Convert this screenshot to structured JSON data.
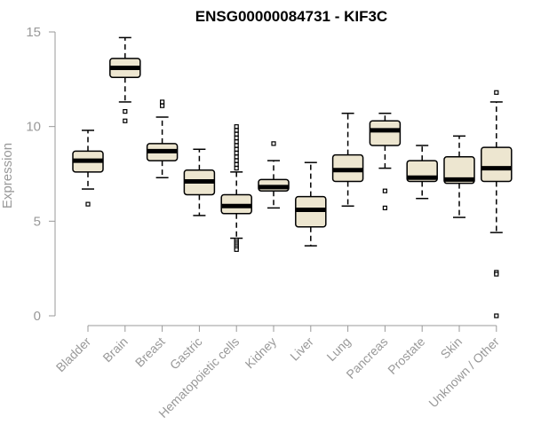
{
  "chart_data": {
    "type": "boxplot",
    "title": "ENSG00000084731 - KIF3C",
    "xlabel": "",
    "ylabel": "Expression",
    "ylim": [
      0,
      15
    ],
    "yticks": [
      0,
      5,
      10,
      15
    ],
    "grid": false,
    "legend": "none",
    "colors": {
      "box_fill": "#ede6d0",
      "box_stroke": "#000000",
      "median": "#000000",
      "axis": "#999999",
      "text_muted": "#999999",
      "title": "#000000"
    },
    "categories": [
      "Bladder",
      "Brain",
      "Breast",
      "Gastric",
      "Hematopoietic cells",
      "Kidney",
      "Liver",
      "Lung",
      "Pancreas",
      "Prostate",
      "Skin",
      "Unknown / Other"
    ],
    "boxes": [
      {
        "category": "Bladder",
        "whisker_low": 6.7,
        "q1": 7.6,
        "median": 8.2,
        "q3": 8.7,
        "whisker_high": 9.8,
        "outliers": [
          5.9
        ]
      },
      {
        "category": "Brain",
        "whisker_low": 11.3,
        "q1": 12.6,
        "median": 13.1,
        "q3": 13.6,
        "whisker_high": 14.7,
        "outliers": [
          10.8,
          10.3
        ]
      },
      {
        "category": "Breast",
        "whisker_low": 7.3,
        "q1": 8.2,
        "median": 8.7,
        "q3": 9.1,
        "whisker_high": 10.5,
        "outliers": [
          11.1,
          11.3
        ]
      },
      {
        "category": "Gastric",
        "whisker_low": 5.3,
        "q1": 6.4,
        "median": 7.1,
        "q3": 7.7,
        "whisker_high": 8.8,
        "outliers": []
      },
      {
        "category": "Hematopoietic cells",
        "whisker_low": 4.1,
        "q1": 5.4,
        "median": 5.8,
        "q3": 6.4,
        "whisker_high": 7.6,
        "outliers": [
          7.8,
          8.0,
          8.2,
          8.4,
          8.6,
          8.8,
          9.0,
          9.2,
          9.4,
          9.6,
          9.8,
          10.0,
          4.0,
          3.9,
          3.8,
          3.7,
          3.6,
          3.5
        ]
      },
      {
        "category": "Kidney",
        "whisker_low": 5.7,
        "q1": 6.6,
        "median": 6.8,
        "q3": 7.2,
        "whisker_high": 8.2,
        "outliers": [
          9.1
        ]
      },
      {
        "category": "Liver",
        "whisker_low": 3.7,
        "q1": 4.7,
        "median": 5.6,
        "q3": 6.3,
        "whisker_high": 8.1,
        "outliers": []
      },
      {
        "category": "Lung",
        "whisker_low": 5.8,
        "q1": 7.1,
        "median": 7.7,
        "q3": 8.5,
        "whisker_high": 10.7,
        "outliers": []
      },
      {
        "category": "Pancreas",
        "whisker_low": 7.8,
        "q1": 9.0,
        "median": 9.8,
        "q3": 10.3,
        "whisker_high": 10.7,
        "outliers": [
          6.6,
          5.7
        ]
      },
      {
        "category": "Prostate",
        "whisker_low": 6.2,
        "q1": 7.1,
        "median": 7.3,
        "q3": 8.2,
        "whisker_high": 9.0,
        "outliers": []
      },
      {
        "category": "Skin",
        "whisker_low": 5.2,
        "q1": 7.0,
        "median": 7.2,
        "q3": 8.4,
        "whisker_high": 9.5,
        "outliers": []
      },
      {
        "category": "Unknown / Other",
        "whisker_low": 4.4,
        "q1": 7.1,
        "median": 7.8,
        "q3": 8.9,
        "whisker_high": 11.3,
        "outliers": [
          11.8,
          2.3,
          2.2,
          0.0
        ]
      }
    ]
  }
}
